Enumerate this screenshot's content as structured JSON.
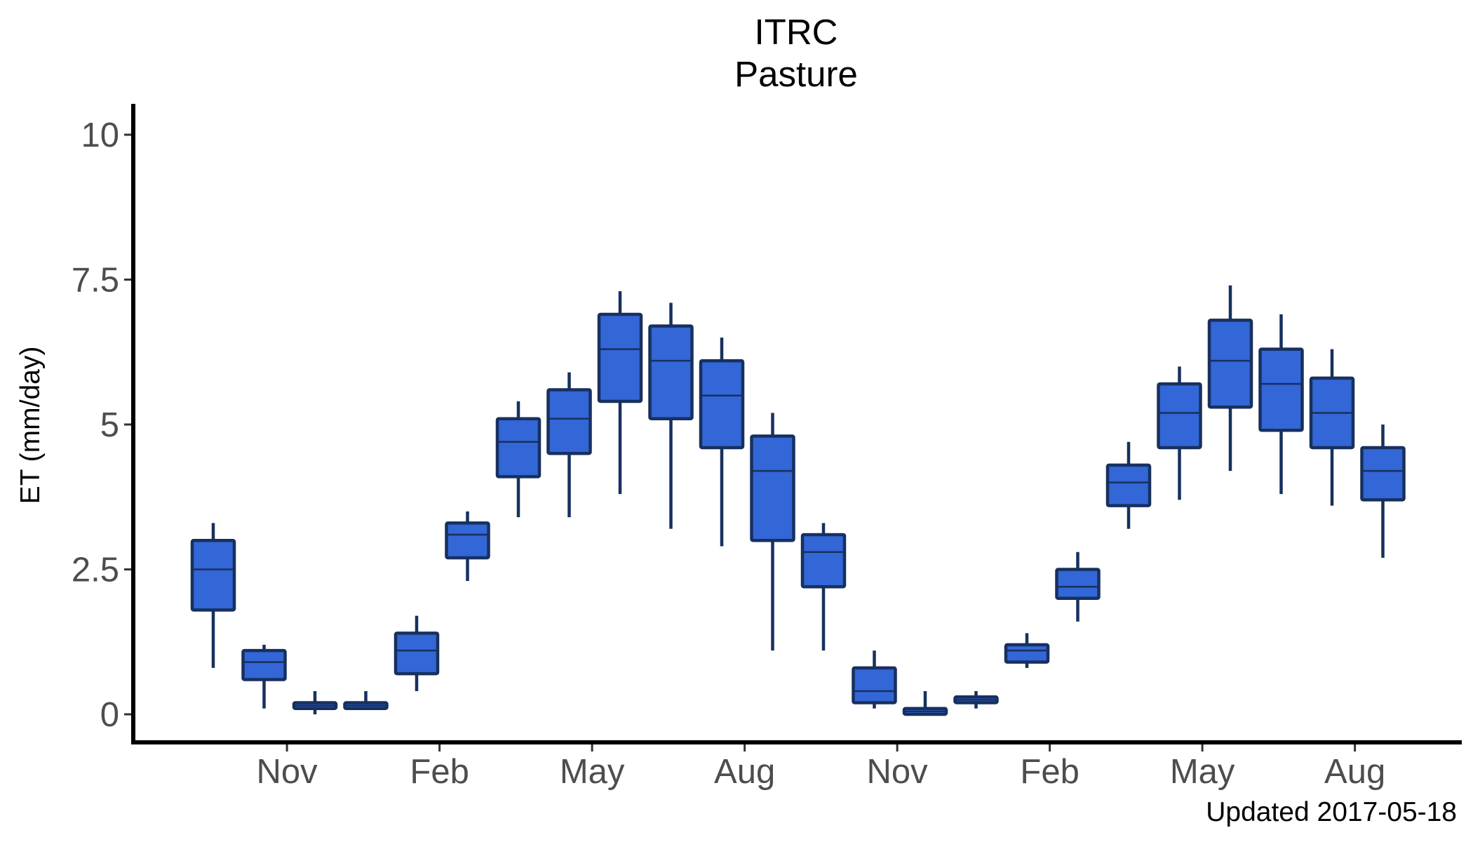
{
  "chart_data": {
    "type": "box",
    "title": "ITRC",
    "subtitle": "Pasture",
    "ylabel": "ET (mm/day)",
    "xlabel": "",
    "caption": "Updated  2017-05-18",
    "ylim": [
      -0.5,
      10.5
    ],
    "yticks": [
      0,
      2.5,
      5,
      7.5,
      10
    ],
    "ytick_labels": [
      "0",
      "2.5",
      "5",
      "7.5",
      "10"
    ],
    "xtick_labels": [
      "Nov",
      "Feb",
      "May",
      "Aug",
      "Nov",
      "Feb",
      "May",
      "Aug"
    ],
    "grid": false,
    "legend": "none",
    "colors": {
      "fill": "#3366d6",
      "stroke": "#17305e"
    },
    "boxes": [
      {
        "month": "2015-10",
        "min": 0.8,
        "q1": 1.8,
        "median": 2.5,
        "q3": 3.0,
        "max": 3.3
      },
      {
        "month": "2015-11",
        "min": 0.1,
        "q1": 0.6,
        "median": 0.9,
        "q3": 1.1,
        "max": 1.2
      },
      {
        "month": "2015-12",
        "min": 0.0,
        "q1": 0.1,
        "median": 0.15,
        "q3": 0.2,
        "max": 0.4
      },
      {
        "month": "2016-01",
        "min": 0.1,
        "q1": 0.1,
        "median": 0.15,
        "q3": 0.2,
        "max": 0.4
      },
      {
        "month": "2016-02",
        "min": 0.4,
        "q1": 0.7,
        "median": 1.1,
        "q3": 1.4,
        "max": 1.7
      },
      {
        "month": "2016-03",
        "min": 2.3,
        "q1": 2.7,
        "median": 3.1,
        "q3": 3.3,
        "max": 3.5
      },
      {
        "month": "2016-04",
        "min": 3.4,
        "q1": 4.1,
        "median": 4.7,
        "q3": 5.1,
        "max": 5.4
      },
      {
        "month": "2016-05",
        "min": 3.4,
        "q1": 4.5,
        "median": 5.1,
        "q3": 5.6,
        "max": 5.9
      },
      {
        "month": "2016-06",
        "min": 3.8,
        "q1": 5.4,
        "median": 6.3,
        "q3": 6.9,
        "max": 7.3
      },
      {
        "month": "2016-07",
        "min": 3.2,
        "q1": 5.1,
        "median": 6.1,
        "q3": 6.7,
        "max": 7.1
      },
      {
        "month": "2016-08",
        "min": 2.9,
        "q1": 4.6,
        "median": 5.5,
        "q3": 6.1,
        "max": 6.5
      },
      {
        "month": "2016-09",
        "min": 1.1,
        "q1": 3.0,
        "median": 4.2,
        "q3": 4.8,
        "max": 5.2
      },
      {
        "month": "2016-10",
        "min": 1.1,
        "q1": 2.2,
        "median": 2.8,
        "q3": 3.1,
        "max": 3.3
      },
      {
        "month": "2016-11",
        "min": 0.1,
        "q1": 0.2,
        "median": 0.4,
        "q3": 0.8,
        "max": 1.1
      },
      {
        "month": "2016-12",
        "min": 0.0,
        "q1": 0.0,
        "median": 0.05,
        "q3": 0.1,
        "max": 0.4
      },
      {
        "month": "2017-01",
        "min": 0.1,
        "q1": 0.2,
        "median": 0.25,
        "q3": 0.3,
        "max": 0.4
      },
      {
        "month": "2017-02",
        "min": 0.8,
        "q1": 0.9,
        "median": 1.1,
        "q3": 1.2,
        "max": 1.4
      },
      {
        "month": "2017-03",
        "min": 1.6,
        "q1": 2.0,
        "median": 2.2,
        "q3": 2.5,
        "max": 2.8
      },
      {
        "month": "2017-04",
        "min": 3.2,
        "q1": 3.6,
        "median": 4.0,
        "q3": 4.3,
        "max": 4.7
      },
      {
        "month": "2017-05",
        "min": 3.7,
        "q1": 4.6,
        "median": 5.2,
        "q3": 5.7,
        "max": 6.0
      },
      {
        "month": "2017-06",
        "min": 4.2,
        "q1": 5.3,
        "median": 6.1,
        "q3": 6.8,
        "max": 7.4
      },
      {
        "month": "2017-07",
        "min": 3.8,
        "q1": 4.9,
        "median": 5.7,
        "q3": 6.3,
        "max": 6.9
      },
      {
        "month": "2017-08",
        "min": 3.6,
        "q1": 4.6,
        "median": 5.2,
        "q3": 5.8,
        "max": 6.3
      },
      {
        "month": "2017-09",
        "min": 2.7,
        "q1": 3.7,
        "median": 4.2,
        "q3": 4.6,
        "max": 5.0
      }
    ]
  }
}
